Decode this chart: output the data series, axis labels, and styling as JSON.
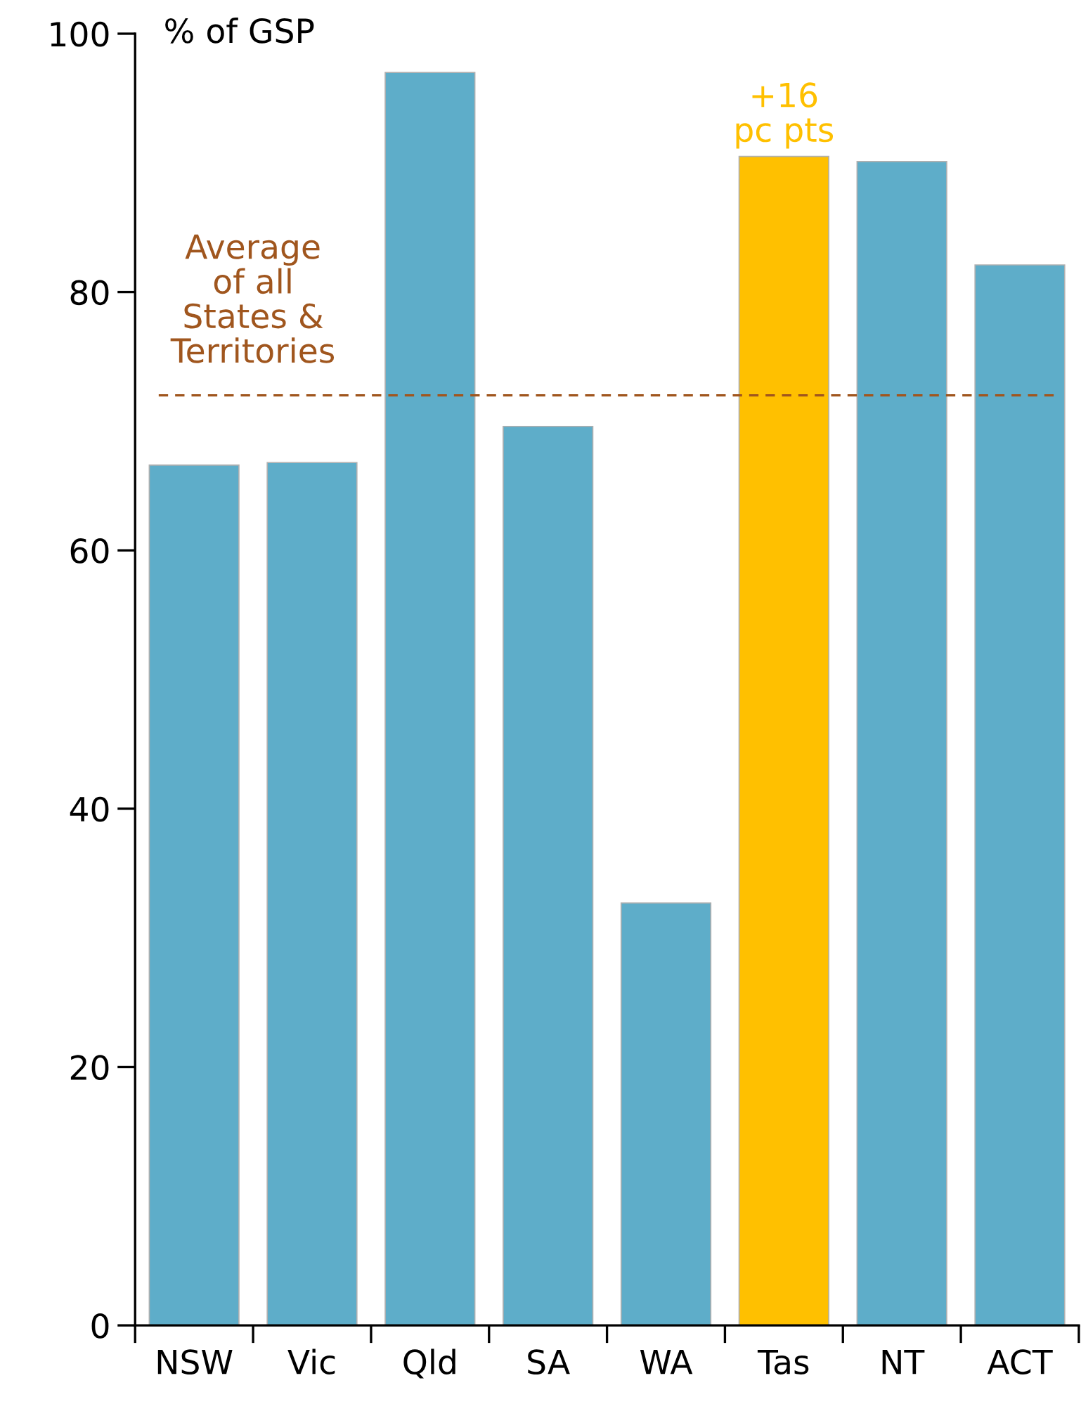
{
  "chart_data": {
    "type": "bar",
    "ylabel": "% of GSP",
    "categories": [
      "NSW",
      "Vic",
      "Qld",
      "SA",
      "WA",
      "Tas",
      "NT",
      "ACT"
    ],
    "values": [
      66.6,
      66.8,
      97.0,
      69.6,
      32.7,
      90.5,
      90.1,
      82.1
    ],
    "colors": [
      "#5eadc9",
      "#5eadc9",
      "#5eadc9",
      "#5eadc9",
      "#5eadc9",
      "#ffc000",
      "#5eadc9",
      "#5eadc9"
    ],
    "ylim": [
      0,
      100
    ],
    "yticks": [
      0,
      20,
      40,
      60,
      80,
      100
    ],
    "ref_lines": [
      {
        "axis": "y",
        "value": 72,
        "label": "Average\nof all\nStates &\nTerritories",
        "color": "#a0561e",
        "line_style": "dashed"
      }
    ],
    "annotations": [
      {
        "text": "+16\npc pts",
        "x": "Tas",
        "y": 90.5
      }
    ],
    "grid": false,
    "legend": false
  }
}
